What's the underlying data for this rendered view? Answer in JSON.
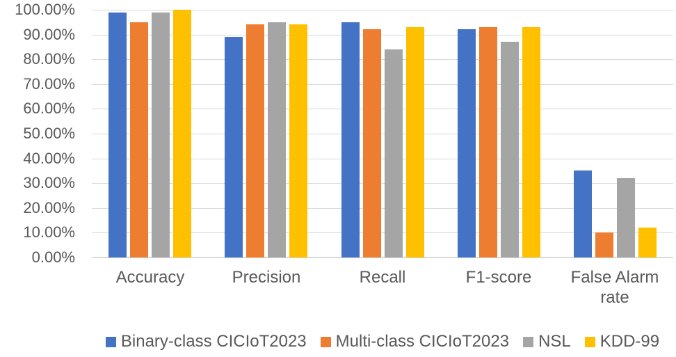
{
  "chart_data": {
    "type": "bar",
    "categories": [
      "Accuracy",
      "Precision",
      "Recall",
      "F1-score",
      "False Alarm rate"
    ],
    "series": [
      {
        "name": "Binary-class CICIoT2023",
        "color": "#4472C4",
        "values": [
          99,
          89,
          95,
          92,
          35
        ]
      },
      {
        "name": "Multi-class CICIoT2023",
        "color": "#ED7D31",
        "values": [
          95,
          94,
          92,
          93,
          10
        ]
      },
      {
        "name": "NSL",
        "color": "#A5A5A5",
        "values": [
          99,
          95,
          84,
          87,
          32
        ]
      },
      {
        "name": "KDD-99",
        "color": "#FFC000",
        "values": [
          100,
          94,
          93,
          93,
          12
        ]
      }
    ],
    "unit": "%",
    "ylim": [
      0,
      100
    ],
    "y_tick_step": 10,
    "y_tick_labels": [
      "0.00%",
      "10.00%",
      "20.00%",
      "30.00%",
      "40.00%",
      "50.00%",
      "60.00%",
      "70.00%",
      "80.00%",
      "90.00%",
      "100.00%"
    ],
    "grid": true,
    "legend_position": "bottom",
    "colors": {
      "gridline": "#D9D9D9",
      "axis_line": "#D9D9D9",
      "text": "#595959",
      "background": "#FFFFFF"
    }
  }
}
